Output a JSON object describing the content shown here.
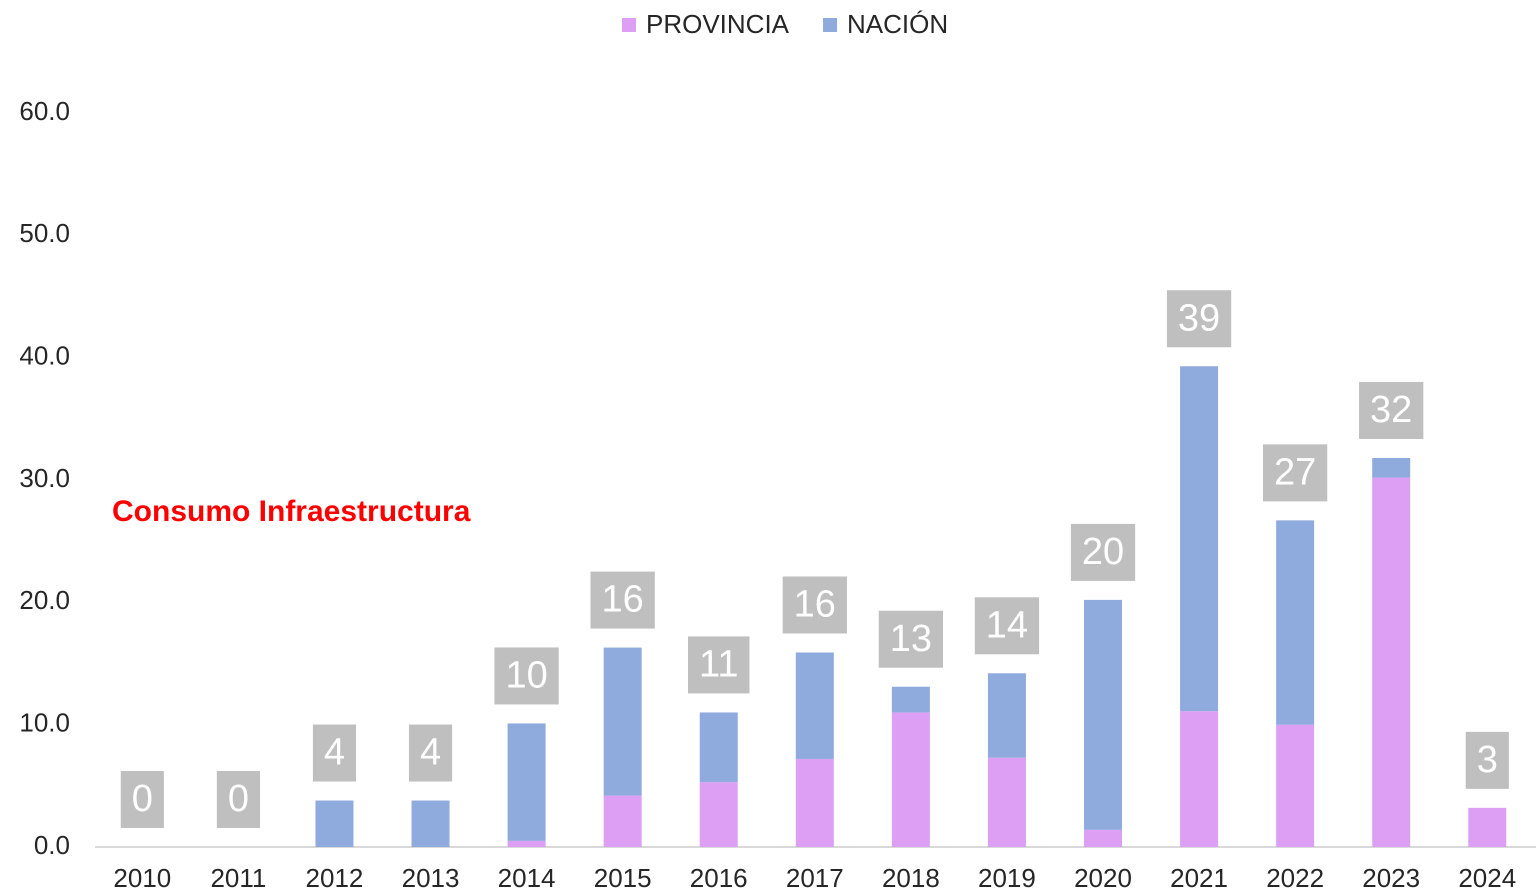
{
  "chart_data": {
    "type": "stacked_bar",
    "annotation": "Consumo Infraestructura",
    "categories": [
      "2010",
      "2011",
      "2012",
      "2013",
      "2014",
      "2015",
      "2016",
      "2017",
      "2018",
      "2019",
      "2020",
      "2021",
      "2022",
      "2023",
      "2024"
    ],
    "series": [
      {
        "name": "PROVINCIA",
        "color": "#dc9ff4",
        "values": [
          0,
          0,
          0,
          0,
          0.5,
          4.2,
          5.3,
          7.2,
          11.0,
          7.3,
          1.4,
          11.1,
          10.0,
          30.2,
          3.2
        ]
      },
      {
        "name": "NACIÓN",
        "color": "#8faadc",
        "values": [
          0,
          0,
          3.8,
          3.8,
          9.6,
          12.1,
          5.7,
          8.7,
          2.1,
          6.9,
          18.8,
          28.2,
          16.7,
          1.6,
          0
        ]
      }
    ],
    "total_labels": [
      "0",
      "0",
      "4",
      "4",
      "10",
      "16",
      "11",
      "16",
      "13",
      "14",
      "20",
      "39",
      "27",
      "32",
      "3"
    ],
    "ylim": [
      0,
      60
    ],
    "yticks": [
      {
        "value": 0,
        "label": "0.0"
      },
      {
        "value": 10,
        "label": "10.0"
      },
      {
        "value": 20,
        "label": "20.0"
      },
      {
        "value": 30,
        "label": "30.0"
      },
      {
        "value": 40,
        "label": "40.0"
      },
      {
        "value": 50,
        "label": "50.0"
      },
      {
        "value": 60,
        "label": "60.0"
      }
    ],
    "legend": "top"
  }
}
